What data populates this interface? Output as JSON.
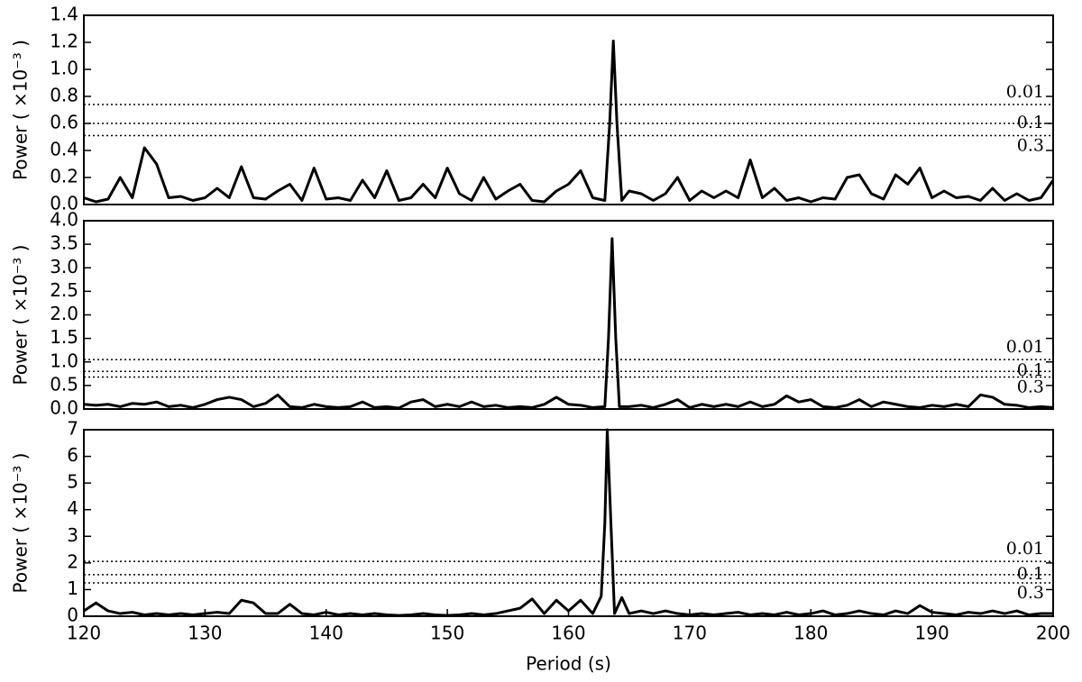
{
  "chart_data": [
    {
      "type": "line",
      "ylabel": "Power ( ×10⁻³ )",
      "xlim": [
        120,
        200
      ],
      "ylim": [
        0,
        1.4
      ],
      "yticks": [
        {
          "value": 0,
          "label": "0.0"
        },
        0.2,
        0.4,
        0.6,
        0.8,
        {
          "value": 1,
          "label": "1.0"
        },
        1.2,
        1.4
      ],
      "x": [
        120,
        121,
        122,
        123,
        124,
        125,
        126,
        127,
        128,
        129,
        130,
        131,
        132,
        133,
        134,
        135,
        136,
        137,
        138,
        139,
        140,
        141,
        142,
        143,
        144,
        145,
        146,
        147,
        148,
        149,
        150,
        151,
        152,
        153,
        154,
        155,
        156,
        157,
        158,
        159,
        160,
        161,
        162,
        163,
        163.4,
        163.7,
        164,
        164.4,
        165,
        166,
        167,
        168,
        169,
        170,
        171,
        172,
        173,
        174,
        175,
        176,
        177,
        178,
        179,
        180,
        181,
        182,
        183,
        184,
        185,
        186,
        187,
        188,
        189,
        190,
        191,
        192,
        193,
        194,
        195,
        196,
        197,
        198,
        199,
        200
      ],
      "series": [
        {
          "color": "#000000",
          "values": [
            0.05,
            0.02,
            0.04,
            0.2,
            0.05,
            0.42,
            0.3,
            0.05,
            0.06,
            0.03,
            0.05,
            0.12,
            0.05,
            0.28,
            0.05,
            0.04,
            0.1,
            0.15,
            0.03,
            0.27,
            0.04,
            0.05,
            0.03,
            0.18,
            0.05,
            0.25,
            0.03,
            0.05,
            0.15,
            0.05,
            0.27,
            0.08,
            0.03,
            0.2,
            0.04,
            0.1,
            0.15,
            0.03,
            0.02,
            0.1,
            0.15,
            0.25,
            0.05,
            0.03,
            0.6,
            1.21,
            0.6,
            0.03,
            0.1,
            0.08,
            0.03,
            0.08,
            0.2,
            0.03,
            0.1,
            0.05,
            0.1,
            0.05,
            0.33,
            0.05,
            0.12,
            0.03,
            0.05,
            0.02,
            0.05,
            0.04,
            0.2,
            0.22,
            0.08,
            0.04,
            0.22,
            0.15,
            0.27,
            0.05,
            0.1,
            0.05,
            0.06,
            0.03,
            0.12,
            0.03,
            0.08,
            0.03,
            0.05,
            0.18
          ]
        }
      ],
      "thresholds": [
        {
          "label": "0.01",
          "value": 0.74
        },
        {
          "label": "0.1",
          "value": 0.6
        },
        {
          "label": "0.3",
          "value": 0.51
        }
      ]
    },
    {
      "type": "line",
      "ylabel": "Power ( ×10⁻³ )",
      "xlim": [
        120,
        200
      ],
      "ylim": [
        0,
        4
      ],
      "yticks": [
        {
          "value": 0,
          "label": "0.0"
        },
        0.5,
        {
          "value": 1,
          "label": "1.0"
        },
        1.5,
        {
          "value": 2,
          "label": "2.0"
        },
        2.5,
        {
          "value": 3,
          "label": "3.0"
        },
        3.5,
        {
          "value": 4,
          "label": "4.0"
        }
      ],
      "x": [
        120,
        121,
        122,
        123,
        124,
        125,
        126,
        127,
        128,
        129,
        130,
        131,
        132,
        133,
        134,
        135,
        136,
        137,
        138,
        139,
        140,
        141,
        142,
        143,
        144,
        145,
        146,
        147,
        148,
        149,
        150,
        151,
        152,
        153,
        154,
        155,
        156,
        157,
        158,
        159,
        160,
        161,
        162,
        163,
        163.3,
        163.6,
        163.9,
        164.2,
        165,
        166,
        167,
        168,
        169,
        170,
        171,
        172,
        173,
        174,
        175,
        176,
        177,
        178,
        179,
        180,
        181,
        182,
        183,
        184,
        185,
        186,
        187,
        188,
        189,
        190,
        191,
        192,
        193,
        194,
        195,
        196,
        197,
        198,
        199,
        200
      ],
      "series": [
        {
          "color": "#000000",
          "values": [
            0.1,
            0.08,
            0.1,
            0.05,
            0.12,
            0.1,
            0.15,
            0.05,
            0.08,
            0.03,
            0.1,
            0.2,
            0.25,
            0.2,
            0.05,
            0.12,
            0.3,
            0.05,
            0.03,
            0.1,
            0.05,
            0.03,
            0.05,
            0.15,
            0.03,
            0.05,
            0.02,
            0.15,
            0.2,
            0.05,
            0.1,
            0.05,
            0.15,
            0.05,
            0.08,
            0.03,
            0.05,
            0.03,
            0.1,
            0.25,
            0.1,
            0.08,
            0.03,
            0.05,
            1.5,
            3.62,
            1.5,
            0.05,
            0.05,
            0.08,
            0.03,
            0.1,
            0.2,
            0.03,
            0.1,
            0.05,
            0.1,
            0.05,
            0.15,
            0.05,
            0.1,
            0.28,
            0.15,
            0.2,
            0.05,
            0.03,
            0.08,
            0.2,
            0.05,
            0.15,
            0.1,
            0.05,
            0.03,
            0.08,
            0.05,
            0.1,
            0.05,
            0.3,
            0.25,
            0.1,
            0.08,
            0.03,
            0.05,
            0.03
          ]
        }
      ],
      "thresholds": [
        {
          "label": "0.01",
          "value": 1.05
        },
        {
          "label": "0.1",
          "value": 0.8
        },
        {
          "label": "0.3",
          "value": 0.68
        }
      ]
    },
    {
      "type": "line",
      "xlabel": "Period (s)",
      "ylabel": "Power ( ×10⁻³ )",
      "xlim": [
        120,
        200
      ],
      "ylim": [
        0,
        7
      ],
      "xticks": [
        120,
        130,
        140,
        150,
        160,
        170,
        180,
        190,
        200
      ],
      "yticks": [
        0,
        1,
        2,
        3,
        4,
        5,
        6,
        7
      ],
      "x": [
        120,
        121,
        122,
        123,
        124,
        125,
        126,
        127,
        128,
        129,
        130,
        131,
        132,
        133,
        134,
        135,
        136,
        137,
        138,
        139,
        140,
        141,
        142,
        143,
        144,
        145,
        146,
        147,
        148,
        149,
        150,
        151,
        152,
        153,
        154,
        155,
        156,
        157,
        158,
        159,
        160,
        161,
        162,
        162.7,
        163,
        163.2,
        163.5,
        163.8,
        164.4,
        165,
        166,
        167,
        168,
        169,
        170,
        171,
        172,
        173,
        174,
        175,
        176,
        177,
        178,
        179,
        180,
        181,
        182,
        183,
        184,
        185,
        186,
        187,
        188,
        189,
        190,
        191,
        192,
        193,
        194,
        195,
        196,
        197,
        198,
        199,
        200
      ],
      "series": [
        {
          "color": "#000000",
          "values": [
            0.2,
            0.5,
            0.2,
            0.1,
            0.15,
            0.05,
            0.1,
            0.05,
            0.1,
            0.05,
            0.1,
            0.15,
            0.1,
            0.6,
            0.5,
            0.1,
            0.1,
            0.45,
            0.1,
            0.05,
            0.15,
            0.05,
            0.1,
            0.05,
            0.1,
            0.05,
            0.03,
            0.05,
            0.1,
            0.05,
            0.03,
            0.05,
            0.1,
            0.05,
            0.1,
            0.2,
            0.3,
            0.65,
            0.1,
            0.6,
            0.2,
            0.6,
            0.1,
            0.75,
            3.5,
            7,
            3.5,
            0.1,
            0.7,
            0.1,
            0.2,
            0.1,
            0.2,
            0.1,
            0.05,
            0.1,
            0.05,
            0.1,
            0.15,
            0.05,
            0.1,
            0.05,
            0.15,
            0.05,
            0.1,
            0.2,
            0.05,
            0.1,
            0.2,
            0.1,
            0.05,
            0.2,
            0.1,
            0.4,
            0.15,
            0.1,
            0.05,
            0.15,
            0.1,
            0.2,
            0.1,
            0.2,
            0.05,
            0.1,
            0.1
          ]
        }
      ],
      "thresholds": [
        {
          "label": "0.01",
          "value": 2.06
        },
        {
          "label": "0.1",
          "value": 1.56
        },
        {
          "label": "0.3",
          "value": 1.25
        }
      ]
    }
  ]
}
